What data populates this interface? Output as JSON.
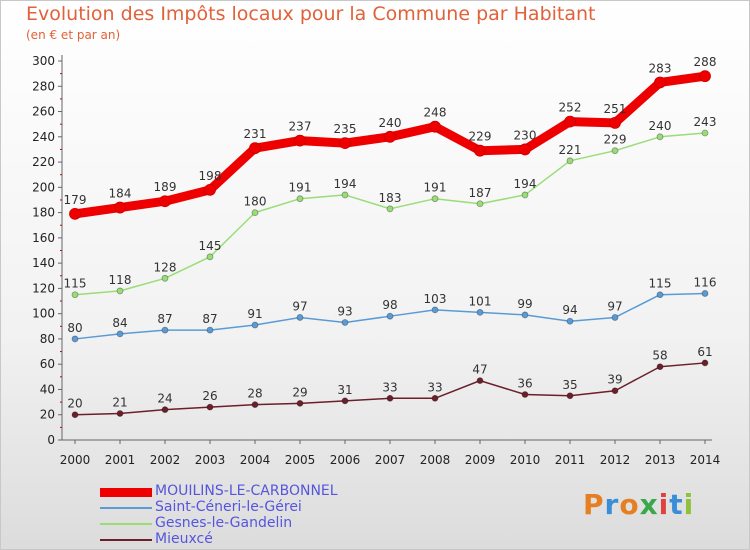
{
  "title": "Evolution des Impôts locaux pour la Commune par Habitant",
  "subtitle": "(en € et par an)",
  "logo": {
    "text": "Proxiti",
    "letter_colors": [
      "#e67e22",
      "#3a8ed8",
      "#e67e22",
      "#3aa84a",
      "#e04040",
      "#3a8ed8",
      "#8fc23a"
    ]
  },
  "chart_data": {
    "type": "line",
    "x": [
      "2000",
      "2001",
      "2002",
      "2003",
      "2004",
      "2005",
      "2006",
      "2007",
      "2008",
      "2009",
      "2010",
      "2011",
      "2012",
      "2013",
      "2014"
    ],
    "ylim": [
      0,
      300
    ],
    "yticks": [
      0,
      20,
      40,
      60,
      80,
      100,
      120,
      140,
      160,
      180,
      200,
      220,
      240,
      260,
      280,
      300
    ],
    "grid": false,
    "legend_position": "bottom-left",
    "series": [
      {
        "name": "MOUILINS-LE-CARBONNEL",
        "color": "#ee0000",
        "width": 9,
        "values": [
          179,
          184,
          189,
          198,
          231,
          237,
          235,
          240,
          248,
          229,
          230,
          252,
          251,
          283,
          288
        ]
      },
      {
        "name": "Saint-Céneri-le-Gérei",
        "color": "#5b9bd5",
        "width": 1.5,
        "values": [
          80,
          84,
          87,
          87,
          91,
          97,
          93,
          98,
          103,
          101,
          99,
          94,
          97,
          115,
          116
        ]
      },
      {
        "name": "Gesnes-le-Gandelin",
        "color": "#99dd77",
        "width": 1.5,
        "values": [
          115,
          118,
          128,
          145,
          180,
          191,
          194,
          183,
          191,
          187,
          194,
          221,
          229,
          240,
          243
        ]
      },
      {
        "name": "Mieuxcé",
        "color": "#6b1f2a",
        "width": 1.5,
        "values": [
          20,
          21,
          24,
          26,
          28,
          29,
          31,
          33,
          33,
          47,
          36,
          35,
          39,
          58,
          61
        ]
      }
    ]
  }
}
